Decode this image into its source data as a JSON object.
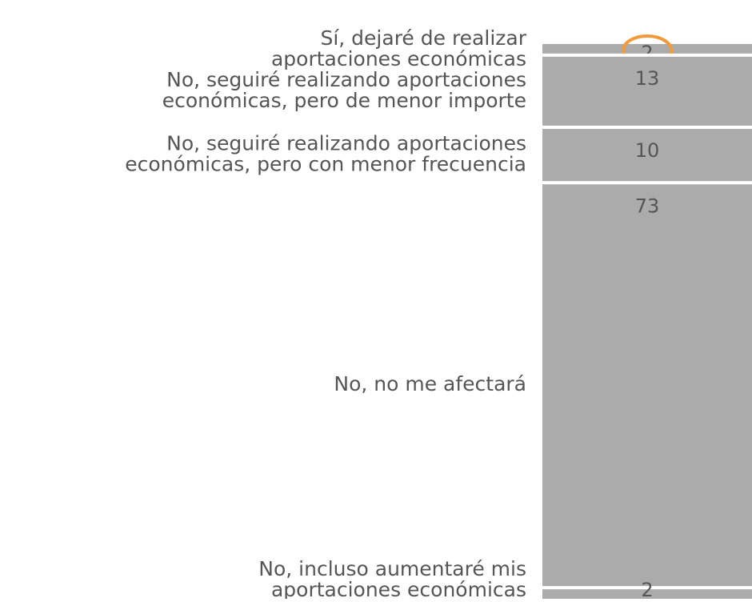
{
  "chart_data": {
    "type": "stacked-bar",
    "categories": [
      [
        "Sí, dejaré de realizar",
        "aportaciones económicas"
      ],
      [
        "No, seguiré realizando aportaciones",
        "económicas, pero de menor importe"
      ],
      [
        "No, seguiré realizando aportaciones",
        "económicas, pero con menor frecuencia"
      ],
      [
        "No, no me afectará"
      ],
      [
        "No, incluso aumentaré mis",
        "aportaciones económicas"
      ]
    ],
    "values": [
      2,
      13,
      10,
      73,
      2
    ],
    "color": "#ababab"
  }
}
